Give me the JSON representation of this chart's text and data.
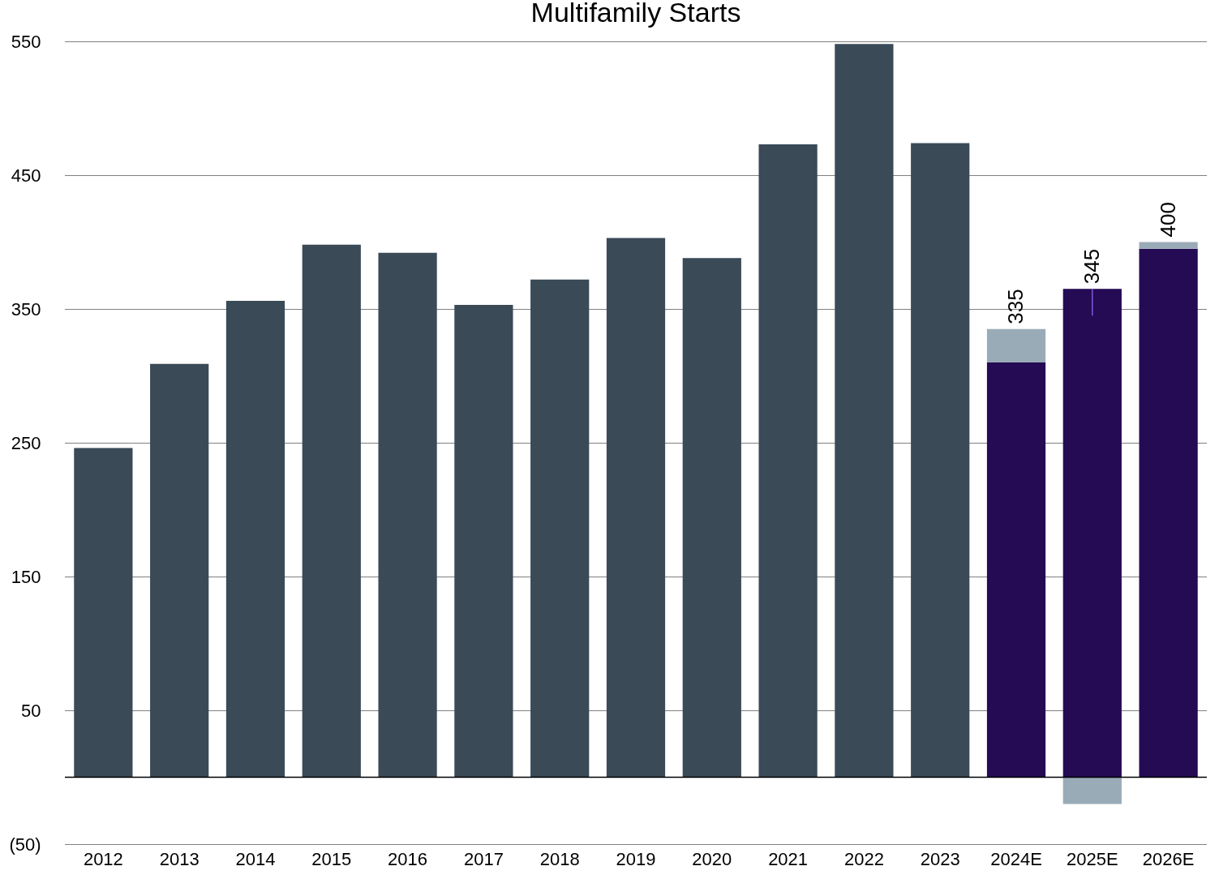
{
  "chart_data": {
    "type": "bar",
    "title": "Multifamily Starts",
    "stacked": true,
    "categories": [
      "2012",
      "2013",
      "2014",
      "2015",
      "2016",
      "2017",
      "2018",
      "2019",
      "2020",
      "2021",
      "2022",
      "2023",
      "2024E",
      "2025E",
      "2026E"
    ],
    "series": [
      {
        "color": "#3a4a57",
        "values": [
          246,
          309,
          356,
          398,
          392,
          353,
          372,
          403,
          388,
          473,
          548,
          474,
          null,
          null,
          null
        ]
      },
      {
        "color": "#250a54",
        "values": [
          null,
          null,
          null,
          null,
          null,
          null,
          null,
          null,
          null,
          null,
          null,
          null,
          310,
          365,
          395
        ]
      },
      {
        "color": "#9aabb8",
        "values": [
          null,
          null,
          null,
          null,
          null,
          null,
          null,
          null,
          null,
          null,
          null,
          null,
          25,
          -20,
          5
        ]
      }
    ],
    "totals": [
      null,
      null,
      null,
      null,
      null,
      null,
      null,
      null,
      null,
      null,
      null,
      null,
      "335",
      "345",
      "400"
    ],
    "ylim": [
      -50,
      550
    ],
    "yticks": [
      {
        "value": -50,
        "label": "(50)"
      },
      50,
      150,
      250,
      350,
      450,
      550
    ],
    "grid": "y",
    "ref_lines": [
      {
        "axis": "y",
        "value": 0,
        "color": "#000000"
      }
    ]
  }
}
